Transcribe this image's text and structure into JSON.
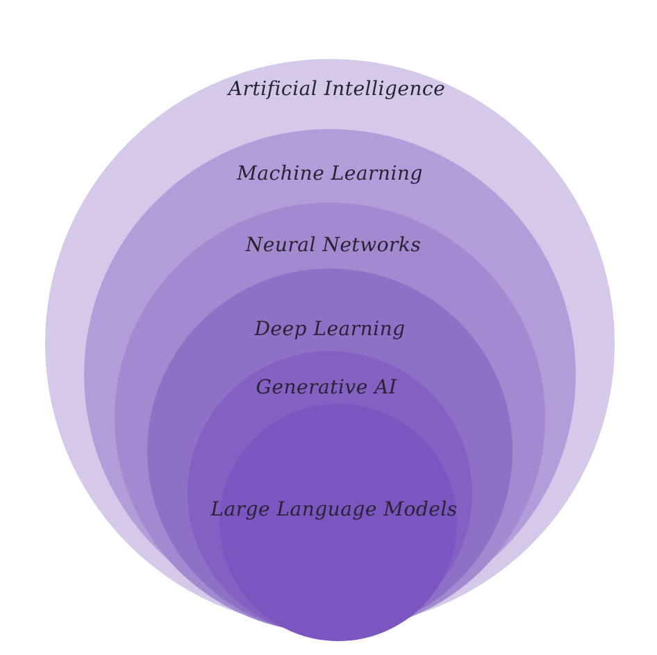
{
  "diagram": {
    "type": "nested-circles",
    "layers": [
      {
        "label": "Artificial Intelligence",
        "color": "#d5c8e9"
      },
      {
        "label": "Machine Learning",
        "color": "#b29ddb"
      },
      {
        "label": "Neural Networks",
        "color": "#a18acf"
      },
      {
        "label": "Deep Learning",
        "color": "#8f70c7"
      },
      {
        "label": "Generative AI",
        "color": "#8560c3"
      },
      {
        "label": "Large Language Models",
        "color": "#7b55c0"
      }
    ]
  }
}
